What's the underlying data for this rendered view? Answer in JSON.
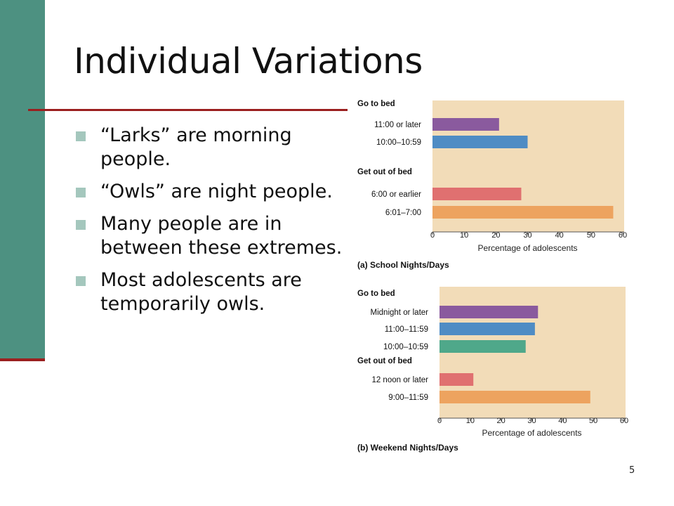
{
  "slide": {
    "title": "Individual Variations",
    "bullets": [
      "“Larks” are morning people.",
      "“Owls” are night people.",
      "Many people are in between these extremes.",
      "Most adolescents are temporarily owls."
    ],
    "page_number": "5"
  },
  "colors": {
    "accent_bar": "#4d9181",
    "rule": "#9b1f1f",
    "bullet": "#a4c7bd",
    "plot_background": "#f2dcb8"
  },
  "chart_data": [
    {
      "type": "bar",
      "orientation": "horizontal",
      "caption": "(a) School Nights/Days",
      "xlabel": "Percentage of adolescents",
      "xlim": [
        0,
        60
      ],
      "xticks": [
        0,
        10,
        20,
        30,
        40,
        50,
        60
      ],
      "groups": [
        {
          "label": "Go to bed",
          "bars": [
            {
              "category": "11:00 or later",
              "value": 21,
              "color": "#8a5a9e"
            },
            {
              "category": "10:00–10:59",
              "value": 30,
              "color": "#4f8cc4"
            }
          ]
        },
        {
          "label": "Get out of bed",
          "bars": [
            {
              "category": "6:00 or earlier",
              "value": 28,
              "color": "#e07070"
            },
            {
              "category": "6:01–7:00",
              "value": 57,
              "color": "#eda35f"
            }
          ]
        }
      ]
    },
    {
      "type": "bar",
      "orientation": "horizontal",
      "caption": "(b) Weekend Nights/Days",
      "xlabel": "Percentage of adolescents",
      "xlim": [
        0,
        60
      ],
      "xticks": [
        0,
        10,
        20,
        30,
        40,
        50,
        60
      ],
      "groups": [
        {
          "label": "Go to bed",
          "bars": [
            {
              "category": "Midnight or later",
              "value": 32,
              "color": "#8a5a9e"
            },
            {
              "category": "11:00–11:59",
              "value": 31,
              "color": "#4f8cc4"
            },
            {
              "category": "10:00–10:59",
              "value": 28,
              "color": "#4fa88a"
            }
          ]
        },
        {
          "label": "Get out of bed",
          "bars": [
            {
              "category": "12 noon or later",
              "value": 11,
              "color": "#e07070"
            },
            {
              "category": "9:00–11:59",
              "value": 49,
              "color": "#eda35f"
            }
          ]
        }
      ]
    }
  ]
}
